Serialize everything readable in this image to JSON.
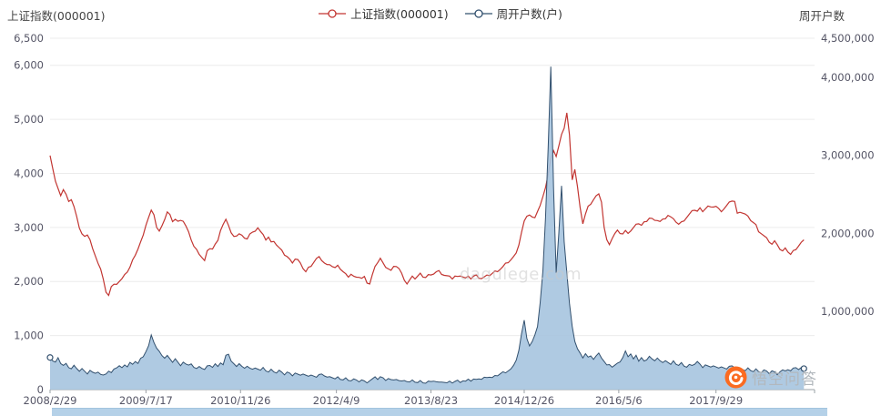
{
  "watermark": {
    "text": "dagulege.com"
  },
  "brand": {
    "label": "悟空问答"
  },
  "chart_data": {
    "type": "line",
    "title": "",
    "left_axis": {
      "title": "上证指数(000001)",
      "min": 0,
      "max": 6500,
      "ticks": [
        {
          "value": 0,
          "label": "0"
        },
        {
          "value": 1000,
          "label": "1,000"
        },
        {
          "value": 2000,
          "label": "2,000"
        },
        {
          "value": 3000,
          "label": "3,000"
        },
        {
          "value": 4000,
          "label": "4,000"
        },
        {
          "value": 5000,
          "label": "5,000"
        },
        {
          "value": 6000,
          "label": "6,000"
        },
        {
          "value": 6500,
          "label": "6,500"
        }
      ]
    },
    "right_axis": {
      "title": "周开户数",
      "min": 0,
      "max": 4500000,
      "ticks": [
        {
          "value": 1000000,
          "label": "1,000,000"
        },
        {
          "value": 2000000,
          "label": "2,000,000"
        },
        {
          "value": 3000000,
          "label": "3,000,000"
        },
        {
          "value": 4000000,
          "label": "4,000,000"
        },
        {
          "value": 4500000,
          "label": "4,500,000"
        }
      ]
    },
    "x_axis": {
      "unit": "weeks_since_first_date",
      "max_weeks": 574,
      "ticks": [
        {
          "week": 0,
          "label": "2008/2/29"
        },
        {
          "week": 72,
          "label": "2009/7/17"
        },
        {
          "week": 143,
          "label": "2010/11/26"
        },
        {
          "week": 215,
          "label": "2012/4/9"
        },
        {
          "week": 286,
          "label": "2013/8/23"
        },
        {
          "week": 356,
          "label": "2014/12/26"
        },
        {
          "week": 427,
          "label": "2016/5/6"
        },
        {
          "week": 500,
          "label": "2017/9/29"
        }
      ]
    },
    "grid": true,
    "legend_position": "top-center",
    "series": [
      {
        "name": "上证指数(000001)",
        "axis": "left",
        "style": "line",
        "color": "#c23531",
        "start_week": 0,
        "step_weeks": 2,
        "jitter": 20,
        "values": [
          4350,
          4100,
          3850,
          3700,
          3600,
          3700,
          3600,
          3500,
          3520,
          3380,
          3180,
          3000,
          2880,
          2820,
          2880,
          2780,
          2600,
          2450,
          2350,
          2230,
          2030,
          1820,
          1750,
          1900,
          1930,
          1960,
          2000,
          2040,
          2150,
          2180,
          2260,
          2380,
          2500,
          2600,
          2720,
          2880,
          3050,
          3180,
          3300,
          3250,
          3000,
          2920,
          3050,
          3150,
          3280,
          3220,
          3120,
          3150,
          3100,
          3150,
          3120,
          3020,
          2900,
          2780,
          2650,
          2580,
          2520,
          2450,
          2380,
          2550,
          2620,
          2600,
          2680,
          2780,
          2950,
          3050,
          3130,
          3050,
          2900,
          2820,
          2860,
          2890,
          2850,
          2780,
          2800,
          2880,
          2900,
          2950,
          3000,
          2920,
          2850,
          2780,
          2820,
          2720,
          2760,
          2680,
          2620,
          2560,
          2500,
          2460,
          2400,
          2360,
          2420,
          2400,
          2320,
          2250,
          2180,
          2250,
          2300,
          2360,
          2420,
          2440,
          2400,
          2340,
          2300,
          2330,
          2280,
          2250,
          2280,
          2240,
          2180,
          2130,
          2100,
          2140,
          2090,
          2060,
          2090,
          2060,
          2080,
          1990,
          1960,
          2120,
          2260,
          2360,
          2430,
          2330,
          2280,
          2240,
          2200,
          2260,
          2290,
          2240,
          2140,
          2040,
          1960,
          2020,
          2080,
          2060,
          2100,
          2140,
          2100,
          2080,
          2120,
          2100,
          2150,
          2180,
          2190,
          2150,
          2120,
          2100,
          2080,
          2060,
          2100,
          2080,
          2120,
          2090,
          2060,
          2080,
          2060,
          2100,
          2110,
          2080,
          2060,
          2080,
          2100,
          2120,
          2150,
          2180,
          2200,
          2230,
          2270,
          2320,
          2360,
          2400,
          2450,
          2550,
          2680,
          2900,
          3100,
          3220,
          3230,
          3180,
          3200,
          3300,
          3400,
          3550,
          3750,
          3980,
          4250,
          4440,
          4320,
          4500,
          4700,
          4850,
          5120,
          4700,
          3900,
          4080,
          3750,
          3350,
          3080,
          3250,
          3380,
          3450,
          3520,
          3580,
          3600,
          3480,
          3000,
          2760,
          2700,
          2800,
          2880,
          2930,
          2900,
          2880,
          2930,
          2910,
          2940,
          2990,
          3040,
          3080,
          3040,
          3090,
          3130,
          3180,
          3160,
          3110,
          3140,
          3110,
          3140,
          3180,
          3230,
          3190,
          3140,
          3110,
          3060,
          3090,
          3140,
          3190,
          3240,
          3290,
          3330,
          3300,
          3350,
          3310,
          3350,
          3390,
          3360,
          3390,
          3390,
          3340,
          3310,
          3350,
          3400,
          3450,
          3500,
          3480,
          3250,
          3300,
          3270,
          3240,
          3190,
          3140,
          3090,
          3040,
          2940,
          2890,
          2840,
          2790,
          2740,
          2690,
          2740,
          2700,
          2600,
          2560,
          2600,
          2560,
          2500,
          2560,
          2610,
          2660,
          2720,
          2750
        ]
      },
      {
        "name": "周开户数(户)",
        "axis": "right",
        "style": "area",
        "color": "#32506e",
        "fill": "#a6c4df",
        "start_week": 0,
        "step_weeks": 2,
        "jitter": 9000,
        "endpoint_markers": true,
        "values": [
          420000,
          370000,
          350000,
          400000,
          340000,
          310000,
          330000,
          290000,
          270000,
          310000,
          260000,
          240000,
          270000,
          230000,
          210000,
          250000,
          220000,
          200000,
          230000,
          195000,
          180000,
          210000,
          240000,
          215000,
          255000,
          285000,
          305000,
          275000,
          325000,
          295000,
          345000,
          315000,
          365000,
          335000,
          395000,
          430000,
          490000,
          560000,
          690000,
          610000,
          530000,
          485000,
          445000,
          405000,
          435000,
          385000,
          355000,
          395000,
          345000,
          315000,
          355000,
          325000,
          305000,
          335000,
          285000,
          265000,
          305000,
          275000,
          255000,
          295000,
          315000,
          285000,
          325000,
          305000,
          345000,
          315000,
          430000,
          460000,
          365000,
          325000,
          305000,
          335000,
          295000,
          265000,
          305000,
          275000,
          255000,
          285000,
          265000,
          245000,
          275000,
          245000,
          225000,
          255000,
          235000,
          215000,
          245000,
          215000,
          195000,
          225000,
          205000,
          185000,
          215000,
          195000,
          175000,
          205000,
          185000,
          165000,
          195000,
          175000,
          155000,
          185000,
          205000,
          175000,
          155000,
          175000,
          155000,
          135000,
          155000,
          135000,
          125000,
          145000,
          125000,
          115000,
          135000,
          115000,
          105000,
          125000,
          105000,
          95000,
          115000,
          135000,
          155000,
          135000,
          165000,
          145000,
          125000,
          145000,
          125000,
          115000,
          135000,
          115000,
          105000,
          125000,
          105000,
          95000,
          115000,
          100000,
          90000,
          110000,
          95000,
          85000,
          105000,
          95000,
          115000,
          100000,
          90000,
          105000,
          95000,
          85000,
          100000,
          90000,
          105000,
          115000,
          100000,
          115000,
          105000,
          125000,
          115000,
          135000,
          125000,
          145000,
          135000,
          155000,
          145000,
          165000,
          155000,
          175000,
          185000,
          205000,
          225000,
          205000,
          245000,
          265000,
          305000,
          385000,
          505000,
          710000,
          880000,
          660000,
          560000,
          610000,
          710000,
          810000,
          1110000,
          1510000,
          2210000,
          3100000,
          4130000,
          2600000,
          1500000,
          2000000,
          2600000,
          1900000,
          1500000,
          1100000,
          820000,
          620000,
          520000,
          460000,
          410000,
          460000,
          410000,
          440000,
          390000,
          430000,
          460000,
          410000,
          360000,
          310000,
          330000,
          290000,
          310000,
          330000,
          360000,
          410000,
          490000,
          430000,
          460000,
          390000,
          430000,
          370000,
          410000,
          360000,
          390000,
          430000,
          390000,
          360000,
          410000,
          370000,
          340000,
          380000,
          350000,
          320000,
          360000,
          330000,
          310000,
          340000,
          310000,
          290000,
          320000,
          300000,
          330000,
          360000,
          320000,
          290000,
          320000,
          300000,
          280000,
          310000,
          290000,
          270000,
          300000,
          280000,
          260000,
          290000,
          310000,
          280000,
          260000,
          280000,
          260000,
          240000,
          270000,
          250000,
          230000,
          260000,
          240000,
          220000,
          250000,
          230000,
          210000,
          240000,
          220000,
          200000,
          230000,
          250000,
          230000,
          260000,
          240000,
          270000,
          290000,
          260000,
          280000,
          260000
        ]
      }
    ]
  }
}
